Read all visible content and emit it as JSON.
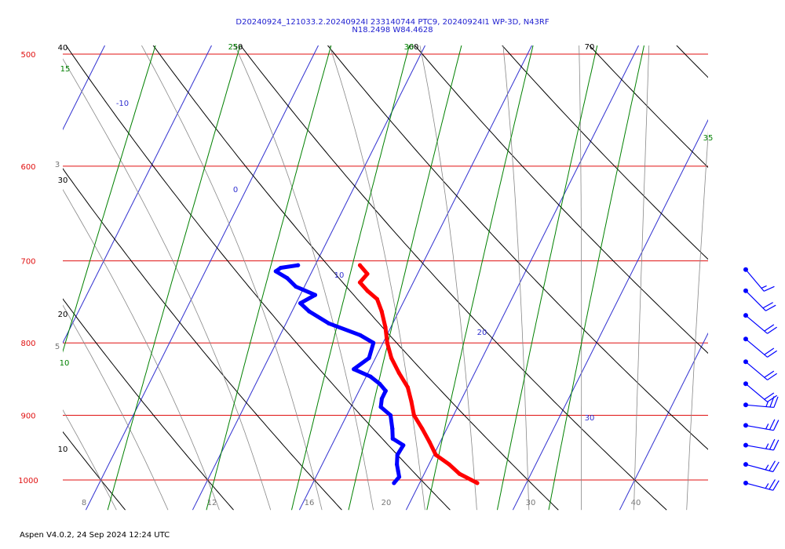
{
  "title": {
    "line1": "D20240924_121033.2.20240924I 233140744 PTC9, 20240924I1 WP-3D, N43RF",
    "line2": "N18.2498 W84.4628"
  },
  "footer": "Aspen V4.0.2, 24 Sep 2024  12:24 UTC",
  "colors": {
    "isobar": "#e01010",
    "isotherm": "#3030d0",
    "dry_adiabat": "#000000",
    "moist_adiabat": "#888888",
    "mixing_ratio": "#008000",
    "temperature": "#ff0000",
    "dewpoint": "#0000ff",
    "wind_barb": "#0000ff"
  },
  "chart_data": {
    "type": "skew-t log-p",
    "pressure_range_hPa": [
      1000,
      500
    ],
    "pressure_labels": [
      "500",
      "600",
      "700",
      "800",
      "900",
      "1000"
    ],
    "bottom_axis_labels": [
      "8",
      "12",
      "16",
      "20",
      "30",
      "40"
    ],
    "isotherm_labels": [
      "-10",
      "0",
      "10",
      "20",
      "30"
    ],
    "dry_adiabat_labels": [
      "40",
      "30",
      "20",
      "10",
      "50",
      "60",
      "70"
    ],
    "mixing_ratio_labels": [
      "15",
      "10",
      "25",
      "30",
      "35"
    ],
    "side_labels": [
      "3",
      "5"
    ],
    "temperature_profile": [
      {
        "p": 1005,
        "t": 25.4
      },
      {
        "p": 990,
        "t": 23.3
      },
      {
        "p": 975,
        "t": 21.9
      },
      {
        "p": 960,
        "t": 20.2
      },
      {
        "p": 940,
        "t": 19.0
      },
      {
        "p": 920,
        "t": 17.7
      },
      {
        "p": 900,
        "t": 16.3
      },
      {
        "p": 880,
        "t": 15.4
      },
      {
        "p": 860,
        "t": 14.4
      },
      {
        "p": 840,
        "t": 12.9
      },
      {
        "p": 820,
        "t": 11.5
      },
      {
        "p": 800,
        "t": 10.4
      },
      {
        "p": 780,
        "t": 9.5
      },
      {
        "p": 760,
        "t": 8.4
      },
      {
        "p": 745,
        "t": 7.4
      },
      {
        "p": 735,
        "t": 6.1
      },
      {
        "p": 725,
        "t": 5.0
      },
      {
        "p": 715,
        "t": 5.3
      },
      {
        "p": 705,
        "t": 4.2
      }
    ],
    "dewpoint_profile": [
      {
        "p": 1005,
        "td": 17.6
      },
      {
        "p": 995,
        "td": 17.8
      },
      {
        "p": 985,
        "td": 17.4
      },
      {
        "p": 975,
        "td": 17.0
      },
      {
        "p": 960,
        "td": 16.6
      },
      {
        "p": 945,
        "td": 16.7
      },
      {
        "p": 935,
        "td": 15.4
      },
      {
        "p": 920,
        "td": 14.9
      },
      {
        "p": 900,
        "td": 14.1
      },
      {
        "p": 888,
        "td": 12.8
      },
      {
        "p": 876,
        "td": 12.5
      },
      {
        "p": 865,
        "td": 12.5
      },
      {
        "p": 855,
        "td": 11.6
      },
      {
        "p": 845,
        "td": 10.4
      },
      {
        "p": 835,
        "td": 8.5
      },
      {
        "p": 820,
        "td": 9.4
      },
      {
        "p": 800,
        "td": 9.1
      },
      {
        "p": 790,
        "td": 7.5
      },
      {
        "p": 775,
        "td": 4.0
      },
      {
        "p": 760,
        "td": 1.6
      },
      {
        "p": 750,
        "td": 0.4
      },
      {
        "p": 740,
        "td": 1.4
      },
      {
        "p": 730,
        "td": -0.8
      },
      {
        "p": 720,
        "td": -2.0
      },
      {
        "p": 712,
        "td": -3.4
      },
      {
        "p": 708,
        "td": -3.1
      },
      {
        "p": 705,
        "td": -1.6
      }
    ],
    "wind_barbs": [
      {
        "p": 1005,
        "dir": 105,
        "speed_kt": 25
      },
      {
        "p": 975,
        "dir": 105,
        "speed_kt": 25
      },
      {
        "p": 945,
        "dir": 100,
        "speed_kt": 25
      },
      {
        "p": 915,
        "dir": 100,
        "speed_kt": 25
      },
      {
        "p": 885,
        "dir": 95,
        "speed_kt": 25
      },
      {
        "p": 855,
        "dir": 130,
        "speed_kt": 20
      },
      {
        "p": 825,
        "dir": 130,
        "speed_kt": 20
      },
      {
        "p": 795,
        "dir": 130,
        "speed_kt": 20
      },
      {
        "p": 765,
        "dir": 130,
        "speed_kt": 20
      },
      {
        "p": 735,
        "dir": 135,
        "speed_kt": 20
      },
      {
        "p": 710,
        "dir": 140,
        "speed_kt": 15
      }
    ],
    "grid": true
  }
}
